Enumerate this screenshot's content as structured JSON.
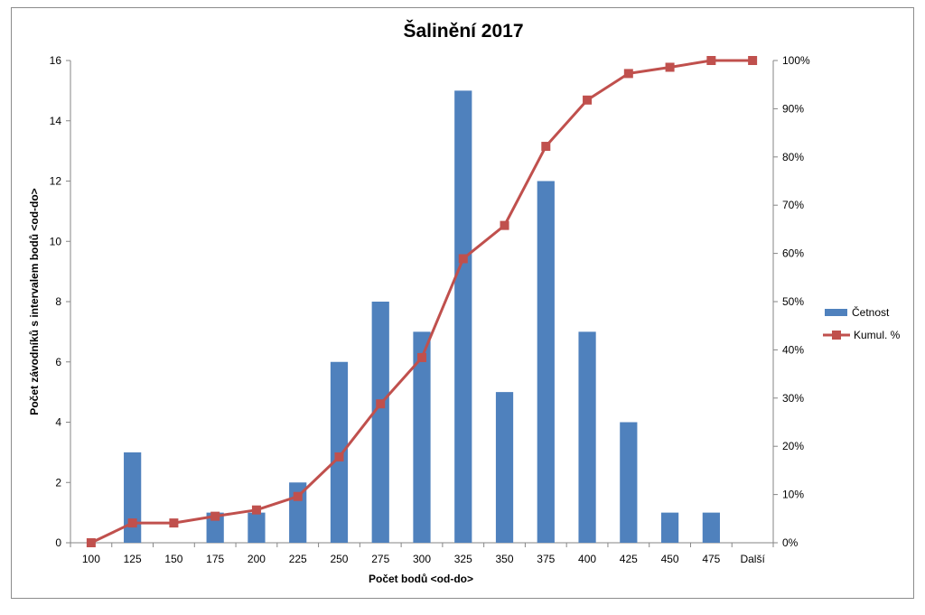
{
  "chart_data": {
    "type": "bar",
    "title": "Šalinění 2017",
    "xlabel": "Počet bodů <od-do>",
    "ylabel": "Počet závodníků s intervalem bodů <od-do>",
    "categories": [
      "100",
      "125",
      "150",
      "175",
      "200",
      "225",
      "250",
      "275",
      "300",
      "325",
      "350",
      "375",
      "400",
      "425",
      "450",
      "475",
      "Další"
    ],
    "ylim": [
      0,
      16
    ],
    "y_ticks": [
      "0",
      "2",
      "4",
      "6",
      "8",
      "10",
      "12",
      "14",
      "16"
    ],
    "y2lim": [
      0,
      100
    ],
    "y2_ticks": [
      "0%",
      "10%",
      "20%",
      "30%",
      "40%",
      "50%",
      "60%",
      "70%",
      "80%",
      "90%",
      "100%"
    ],
    "grid": false,
    "legend_position": "right",
    "series": [
      {
        "name": "Četnost",
        "type": "bar",
        "axis": "left",
        "color": "#4f81bd",
        "values": [
          0,
          3,
          0,
          1,
          1,
          2,
          6,
          8,
          7,
          15,
          5,
          12,
          7,
          4,
          1,
          1,
          0
        ]
      },
      {
        "name": "Kumul. %",
        "type": "line",
        "axis": "right",
        "color": "#c0504d",
        "marker": "square",
        "values": [
          0,
          4.1,
          4.1,
          5.5,
          6.8,
          9.6,
          17.8,
          28.8,
          38.4,
          58.9,
          65.8,
          82.2,
          91.8,
          97.3,
          98.6,
          100,
          100
        ]
      }
    ]
  }
}
